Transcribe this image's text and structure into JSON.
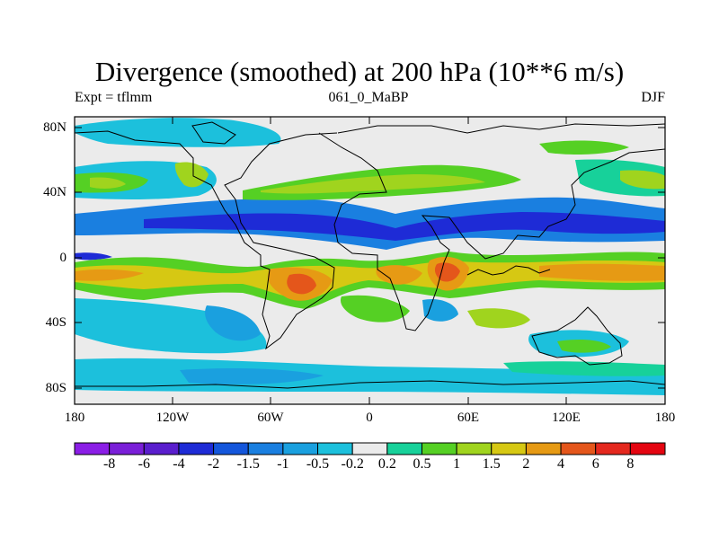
{
  "title": "Divergence (smoothed) at 200 hPa (10**6 m/s)",
  "subtitle": {
    "left": "Expt = tflmm",
    "center": "061_0_MaBP",
    "right": "DJF"
  },
  "map": {
    "x_ticks": [
      "180",
      "120W",
      "60W",
      "0",
      "60E",
      "120E",
      "180"
    ],
    "y_ticks": [
      "80N",
      "40N",
      "0",
      "40S",
      "80S"
    ],
    "lon_range": [
      -180,
      180
    ],
    "lat_range": [
      -90,
      90
    ],
    "ocean_color": "#ebebeb"
  },
  "colorbar": {
    "labels": [
      "-8",
      "-6",
      "-4",
      "-2",
      "-1.5",
      "-1",
      "-0.5",
      "-0.2",
      "0.2",
      "0.5",
      "1",
      "1.5",
      "2",
      "4",
      "6",
      "8"
    ],
    "colors": [
      "#8b1ee6",
      "#7a1fd8",
      "#5a1ecd",
      "#1e2bd6",
      "#1456db",
      "#1a7fe0",
      "#1aa0df",
      "#1cc0dc",
      "#ebebeb",
      "#17d19a",
      "#55d024",
      "#a0d41e",
      "#d6c813",
      "#e69a14",
      "#e4561b",
      "#e4281e",
      "#e40511"
    ]
  }
}
